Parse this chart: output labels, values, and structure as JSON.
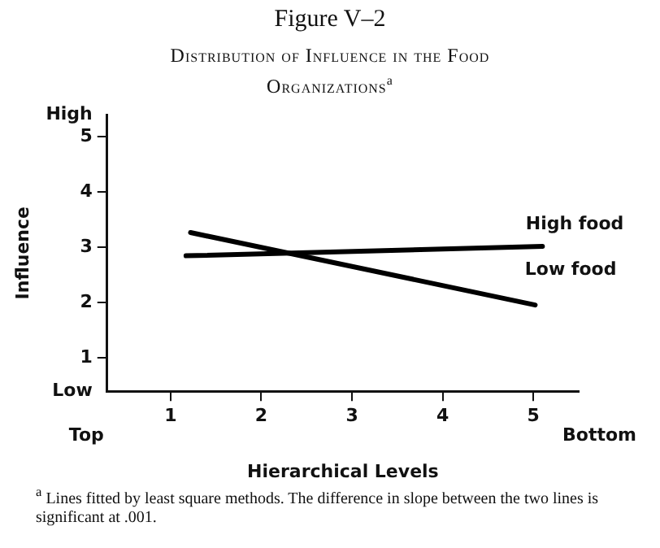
{
  "chart_data": {
    "type": "line",
    "title": "Figure V–2",
    "subtitle": "Distribution of Influence in the Food Organizations$^{a}$",
    "xlabel": "Hierarchical Levels",
    "ylabel": "Influence",
    "xlim": [
      0.3,
      5.5
    ],
    "xticks": [
      1,
      2,
      3,
      4,
      5
    ],
    "ylim": [
      0.4,
      5.4
    ],
    "yticks": [
      {
        "value": 0.4,
        "label": "Low"
      },
      1,
      2,
      3,
      4,
      5,
      {
        "value": 5.4,
        "label": "High"
      }
    ],
    "series": [
      {
        "name": "High food",
        "color": "#000000",
        "x": [
          1.17,
          5.1
        ],
        "values": [
          2.85,
          3.02
        ]
      },
      {
        "name": "Low food",
        "color": "#000000",
        "x": [
          1.22,
          5.02
        ],
        "values": [
          3.27,
          1.96
        ]
      }
    ],
    "grid": false,
    "legend": false,
    "marker": "none",
    "line_style": "solid",
    "annotations": [
      "Top",
      "Bottom",
      "$^{a}$ Lines fitted by least square methods. The difference in slope between the two lines is significant at .001."
    ]
  }
}
